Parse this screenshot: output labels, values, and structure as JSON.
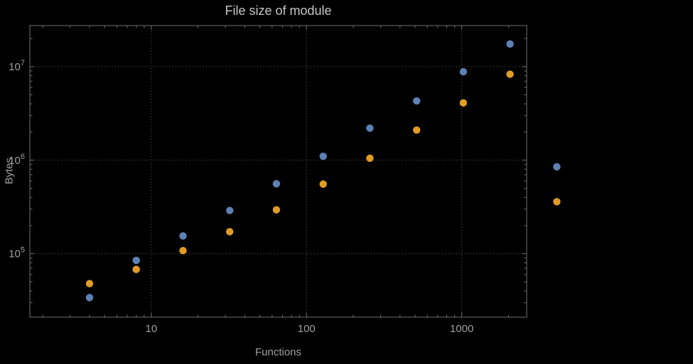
{
  "chart": {
    "title": "File size of module",
    "xlabel": "Functions",
    "ylabel": "Bytes"
  },
  "colors": {
    "background": "#000000",
    "frame": "#6f6f6f",
    "grid": "#5a5a5a",
    "tick_text": "#a0a0a0",
    "title_text": "#c6c6c6",
    "series_blue": "#5e81b5",
    "series_orange": "#e19c24"
  },
  "chart_data": {
    "type": "scatter",
    "title": "File size of module",
    "xlabel": "Functions",
    "ylabel": "Bytes",
    "x_scale": "log",
    "y_scale": "log",
    "grid": true,
    "legend": false,
    "xlim": [
      1.65,
      2620
    ],
    "ylim": [
      21000,
      27500000
    ],
    "x_ticks": [
      10,
      100,
      1000
    ],
    "x_tick_labels": [
      "10",
      "100",
      "1000"
    ],
    "y_ticks": [
      100000,
      1000000,
      10000000
    ],
    "y_tick_labels": [
      "10^5",
      "10^6",
      "10^7"
    ],
    "series": [
      {
        "name": "blue",
        "color": "#5e81b5",
        "x": [
          4,
          8,
          16,
          32,
          64,
          128,
          256,
          512,
          1024,
          2048,
          4096
        ],
        "y": [
          34000,
          85000,
          155000,
          290000,
          560000,
          1100000,
          2200000,
          4300000,
          8800000,
          17500000,
          850000
        ]
      },
      {
        "name": "orange",
        "color": "#e19c24",
        "x": [
          4,
          8,
          16,
          32,
          64,
          128,
          256,
          512,
          1024,
          2048,
          4096
        ],
        "y": [
          48000,
          68000,
          108000,
          172000,
          295000,
          555000,
          1050000,
          2100000,
          4100000,
          8300000,
          360000
        ]
      }
    ]
  }
}
